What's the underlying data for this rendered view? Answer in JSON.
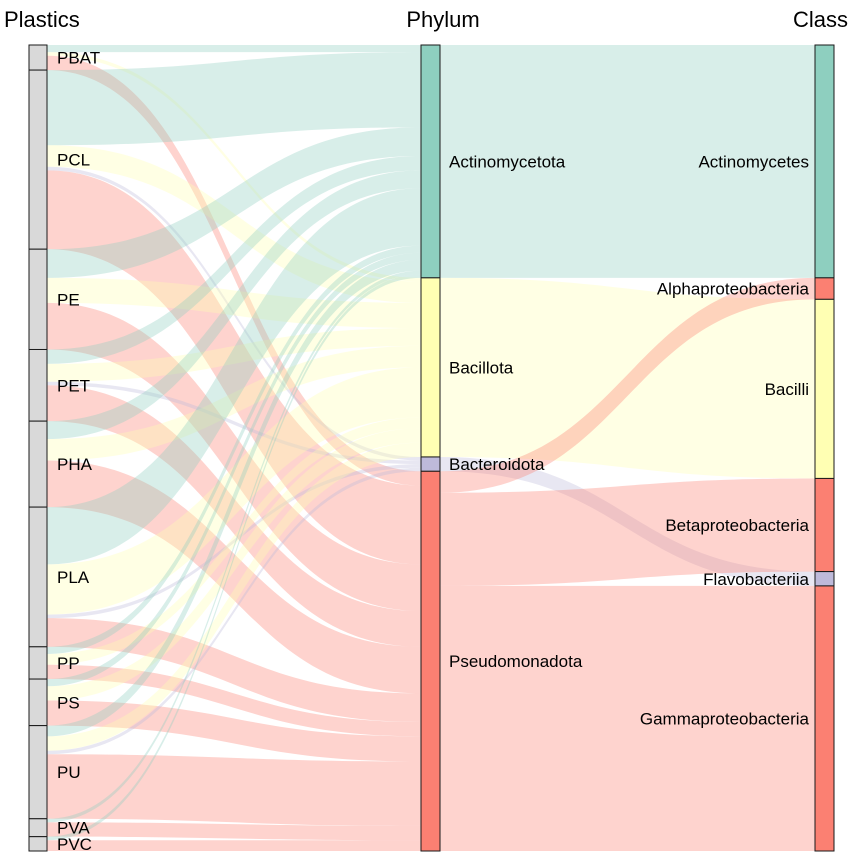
{
  "chart_data": {
    "type": "sankey",
    "columns": [
      {
        "id": "plastics",
        "title": "Plastics"
      },
      {
        "id": "phylum",
        "title": "Phylum"
      },
      {
        "id": "class",
        "title": "Class"
      }
    ],
    "nodes": {
      "plastics": [
        {
          "label": "PBAT",
          "value": 7
        },
        {
          "label": "PCL",
          "value": 50
        },
        {
          "label": "PE",
          "value": 28
        },
        {
          "label": "PET",
          "value": 20
        },
        {
          "label": "PHA",
          "value": 24
        },
        {
          "label": "PLA",
          "value": 39
        },
        {
          "label": "PP",
          "value": 9
        },
        {
          "label": "PS",
          "value": 13
        },
        {
          "label": "PU",
          "value": 26
        },
        {
          "label": "PVA",
          "value": 5
        },
        {
          "label": "PVC",
          "value": 4
        }
      ],
      "phylum": [
        {
          "label": "Actinomycetota",
          "color": "#8ecfbf"
        },
        {
          "label": "Bacillota",
          "color": "#ffffb3"
        },
        {
          "label": "Bacteroidota",
          "color": "#bebada"
        },
        {
          "label": "Pseudomonadota",
          "color": "#fb8072"
        }
      ],
      "class": [
        {
          "label": "Actinomycetes",
          "phylum": "Actinomycetota",
          "color": "#8ecfbf"
        },
        {
          "label": "Alphaproteobacteria",
          "phylum": "Pseudomonadota",
          "color": "#fb8072"
        },
        {
          "label": "Bacilli",
          "phylum": "Bacillota",
          "color": "#ffffb3"
        },
        {
          "label": "Betaproteobacteria",
          "phylum": "Pseudomonadota",
          "color": "#fb8072"
        },
        {
          "label": "Flavobacteriia",
          "phylum": "Bacteroidota",
          "color": "#bebada"
        },
        {
          "label": "Gammaproteobacteria",
          "phylum": "Pseudomonadota",
          "color": "#fb8072"
        }
      ]
    },
    "links_plastic_phylum": [
      {
        "source": "PBAT",
        "target": "Actinomycetota",
        "value": 2
      },
      {
        "source": "PBAT",
        "target": "Bacillota",
        "value": 1
      },
      {
        "source": "PBAT",
        "target": "Pseudomonadota",
        "value": 4
      },
      {
        "source": "PCL",
        "target": "Actinomycetota",
        "value": 21
      },
      {
        "source": "PCL",
        "target": "Bacillota",
        "value": 6
      },
      {
        "source": "PCL",
        "target": "Bacteroidota",
        "value": 1
      },
      {
        "source": "PCL",
        "target": "Pseudomonadota",
        "value": 22
      },
      {
        "source": "PE",
        "target": "Actinomycetota",
        "value": 8
      },
      {
        "source": "PE",
        "target": "Bacillota",
        "value": 7
      },
      {
        "source": "PE",
        "target": "Pseudomonadota",
        "value": 13
      },
      {
        "source": "PET",
        "target": "Actinomycetota",
        "value": 4
      },
      {
        "source": "PET",
        "target": "Bacillota",
        "value": 5
      },
      {
        "source": "PET",
        "target": "Bacteroidota",
        "value": 1
      },
      {
        "source": "PET",
        "target": "Pseudomonadota",
        "value": 10
      },
      {
        "source": "PHA",
        "target": "Actinomycetota",
        "value": 5
      },
      {
        "source": "PHA",
        "target": "Bacillota",
        "value": 6
      },
      {
        "source": "PHA",
        "target": "Pseudomonadota",
        "value": 13
      },
      {
        "source": "PLA",
        "target": "Actinomycetota",
        "value": 16
      },
      {
        "source": "PLA",
        "target": "Bacillota",
        "value": 14
      },
      {
        "source": "PLA",
        "target": "Bacteroidota",
        "value": 1
      },
      {
        "source": "PLA",
        "target": "Pseudomonadota",
        "value": 8
      },
      {
        "source": "PP",
        "target": "Actinomycetota",
        "value": 2
      },
      {
        "source": "PP",
        "target": "Bacillota",
        "value": 3
      },
      {
        "source": "PP",
        "target": "Pseudomonadota",
        "value": 4
      },
      {
        "source": "PS",
        "target": "Actinomycetota",
        "value": 2
      },
      {
        "source": "PS",
        "target": "Bacillota",
        "value": 4
      },
      {
        "source": "PS",
        "target": "Pseudomonadota",
        "value": 7
      },
      {
        "source": "PU",
        "target": "Actinomycetota",
        "value": 3
      },
      {
        "source": "PU",
        "target": "Bacillota",
        "value": 4
      },
      {
        "source": "PU",
        "target": "Bacteroidota",
        "value": 1
      },
      {
        "source": "PU",
        "target": "Pseudomonadota",
        "value": 18
      },
      {
        "source": "PVA",
        "target": "Actinomycetota",
        "value": 1
      },
      {
        "source": "PVA",
        "target": "Pseudomonadota",
        "value": 4
      },
      {
        "source": "PVC",
        "target": "Actinomycetota",
        "value": 1
      },
      {
        "source": "PVC",
        "target": "Pseudomonadota",
        "value": 3
      }
    ],
    "links_phylum_class": [
      {
        "source": "Actinomycetota",
        "target": "Actinomycetes",
        "value": 65
      },
      {
        "source": "Bacillota",
        "target": "Bacilli",
        "value": 50
      },
      {
        "source": "Bacteroidota",
        "target": "Flavobacteriia",
        "value": 4
      },
      {
        "source": "Pseudomonadota",
        "target": "Alphaproteobacteria",
        "value": 6
      },
      {
        "source": "Pseudomonadota",
        "target": "Betaproteobacteria",
        "value": 26
      },
      {
        "source": "Pseudomonadota",
        "target": "Gammaproteobacteria",
        "value": 74
      }
    ]
  }
}
